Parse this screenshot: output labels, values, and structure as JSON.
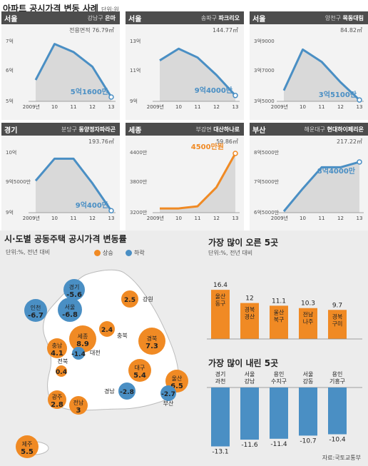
{
  "header": {
    "title": "아파트 공시가격 변동 사례",
    "unit": "단위:원"
  },
  "panels": [
    {
      "region": "서울",
      "district": "강남구",
      "apartment": "은마",
      "area": "전용면적 76.79㎡",
      "color": "#4a8fc4",
      "y_ticks": [
        "7억",
        "6억",
        "5억"
      ],
      "highlight": "5억1600만"
    },
    {
      "region": "서울",
      "district": "송파구",
      "apartment": "파크리오",
      "area": "144.77㎡",
      "color": "#4a8fc4",
      "y_ticks": [
        "13억",
        "11억",
        "9억"
      ],
      "highlight": "9억4000만"
    },
    {
      "region": "서울",
      "district": "양천구",
      "apartment": "목동대림",
      "area": "84.82㎡",
      "color": "#4a8fc4",
      "y_ticks": [
        "3억9000",
        "3억7000",
        "3억5000"
      ],
      "highlight": "3억5100만"
    },
    {
      "region": "경기",
      "district": "분당구",
      "apartment": "동양정자파라곤",
      "area": "193.76㎡",
      "color": "#4a8fc4",
      "y_ticks": [
        "10억",
        "9억5000만",
        "9억"
      ],
      "highlight": "9억400만"
    },
    {
      "region": "세종",
      "district": "부강면",
      "apartment": "대산하나로",
      "area": "59.86㎡",
      "color": "#f08a24",
      "y_ticks": [
        "4400만",
        "3800만",
        "3200만"
      ],
      "highlight": "4500만원"
    },
    {
      "region": "부산",
      "district": "해운대구",
      "apartment": "현대하이페리온",
      "area": "217.22㎡",
      "color": "#4a8fc4",
      "y_ticks": [
        "8억5000만",
        "7억5000만",
        "6억5000만"
      ],
      "highlight": "8억4000만"
    }
  ],
  "map": {
    "title": "시·도별 공동주택 공시가격 변동률",
    "unit": "단위:%, 전년 대비",
    "legend_up": "상승",
    "legend_down": "하락",
    "up_color": "#f08a24",
    "down_color": "#4a8fc4",
    "regions": [
      {
        "name": "경기",
        "value": "-5.6",
        "dir": "down"
      },
      {
        "name": "인천",
        "value": "-6.7",
        "dir": "down"
      },
      {
        "name": "서울",
        "value": "-6.8",
        "dir": "down"
      },
      {
        "name": "강원",
        "value": "2.5",
        "dir": "up"
      },
      {
        "name": "충북",
        "value": "2.4",
        "dir": "up"
      },
      {
        "name": "세종",
        "value": "8.9",
        "dir": "up"
      },
      {
        "name": "충남",
        "value": "4.1",
        "dir": "up"
      },
      {
        "name": "대전",
        "value": "-1.4",
        "dir": "down"
      },
      {
        "name": "경북",
        "value": "7.3",
        "dir": "up"
      },
      {
        "name": "전북",
        "value": "0.4",
        "dir": "up"
      },
      {
        "name": "대구",
        "value": "5.4",
        "dir": "up"
      },
      {
        "name": "울산",
        "value": "6.5",
        "dir": "up"
      },
      {
        "name": "경남",
        "value": "-2.8",
        "dir": "down"
      },
      {
        "name": "부산",
        "value": "-2.7",
        "dir": "down"
      },
      {
        "name": "광주",
        "value": "2.8",
        "dir": "up"
      },
      {
        "name": "전남",
        "value": "3",
        "dir": "up"
      },
      {
        "name": "제주",
        "value": "5.5",
        "dir": "up"
      }
    ]
  },
  "top5_up": {
    "title": "가장 많이 오른 5곳",
    "unit": "단위:%, 전년 대비",
    "items": [
      {
        "label": "울산 동구",
        "value": 16.4,
        "text": "16.4"
      },
      {
        "label": "경북 경산",
        "value": 12,
        "text": "12"
      },
      {
        "label": "울산 북구",
        "value": 11.1,
        "text": "11.1"
      },
      {
        "label": "전남 나주",
        "value": 10.3,
        "text": "10.3"
      },
      {
        "label": "경북 구미",
        "value": 9.7,
        "text": "9.7"
      }
    ]
  },
  "top5_down": {
    "title": "가장 많이 내린 5곳",
    "items": [
      {
        "label": "경기 과천",
        "value": -13.1,
        "text": "-13.1"
      },
      {
        "label": "서울 강남",
        "value": -11.6,
        "text": "-11.6"
      },
      {
        "label": "용인 수지구",
        "value": -11.4,
        "text": "-11.4"
      },
      {
        "label": "서울 강동",
        "value": -10.7,
        "text": "-10.7"
      },
      {
        "label": "용인 기흥구",
        "value": -10.4,
        "text": "-10.4"
      }
    ]
  },
  "source": "자료:국토교통부",
  "chart_data": [
    {
      "type": "line",
      "title": "서울 강남구 은마",
      "x": [
        "2009년",
        "10",
        "11",
        "12",
        "13"
      ],
      "series": [
        {
          "values": [
            5.8,
            7.15,
            6.85,
            6.3,
            5.16
          ]
        }
      ],
      "ylim": [
        5,
        7.3
      ]
    },
    {
      "type": "line",
      "title": "서울 송파구 파크리오",
      "x": [
        "2009년",
        "10",
        "11",
        "12",
        "13"
      ],
      "series": [
        {
          "values": [
            11.8,
            12.6,
            12.0,
            10.8,
            9.4
          ]
        }
      ],
      "ylim": [
        9,
        13.2
      ]
    },
    {
      "type": "line",
      "title": "서울 양천구 목동대림",
      "x": [
        "2009년",
        "10",
        "11",
        "12",
        "13"
      ],
      "series": [
        {
          "values": [
            3.58,
            3.88,
            3.79,
            3.64,
            3.51
          ]
        }
      ],
      "ylim": [
        3.5,
        3.95
      ]
    },
    {
      "type": "line",
      "title": "경기 분당구 동양정자파라곤",
      "x": [
        "2009년",
        "10",
        "11",
        "12",
        "13"
      ],
      "series": [
        {
          "values": [
            9.65,
            10.1,
            10.1,
            9.6,
            9.04
          ]
        }
      ],
      "ylim": [
        9,
        10.25
      ]
    },
    {
      "type": "line",
      "title": "세종 부강면 대산하나로",
      "x": [
        "2009년",
        "10",
        "11",
        "12",
        "13"
      ],
      "series": [
        {
          "values": [
            3200,
            3200,
            3250,
            3700,
            4500
          ]
        }
      ],
      "ylim": [
        3100,
        4550
      ]
    },
    {
      "type": "line",
      "title": "부산 해운대구 현대하이페리온",
      "x": [
        "2009년",
        "10",
        "11",
        "12",
        "13"
      ],
      "series": [
        {
          "values": [
            6.55,
            7.4,
            8.2,
            8.2,
            8.4
          ]
        }
      ],
      "ylim": [
        6.5,
        8.8
      ]
    }
  ]
}
